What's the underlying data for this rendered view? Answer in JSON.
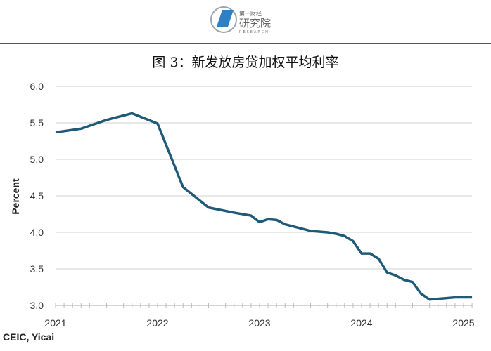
{
  "header": {
    "logo_text": "第一财经 研究院 RESEARCH"
  },
  "title": "图 3：新发放房贷加权平均利率",
  "source": "CEIC, Yicai",
  "chart_data": {
    "type": "line",
    "title": "图 3：新发放房贷加权平均利率",
    "xlabel": "",
    "ylabel": "Percent",
    "ylim": [
      3.0,
      6.0
    ],
    "xlim": [
      "2021-01",
      "2025-02"
    ],
    "yticks": [
      "3.0",
      "3.5",
      "4.0",
      "4.5",
      "5.0",
      "5.5",
      "6.0"
    ],
    "xticks": [
      "2021",
      "2022",
      "2023",
      "2024",
      "2025"
    ],
    "grid": "horizontal",
    "color": "#1f5a78",
    "x": [
      "2021-01",
      "2021-04",
      "2021-07",
      "2021-10",
      "2022-01",
      "2022-04",
      "2022-07",
      "2022-10",
      "2022-12",
      "2023-01",
      "2023-02",
      "2023-03",
      "2023-04",
      "2023-05",
      "2023-06",
      "2023-07",
      "2023-08",
      "2023-09",
      "2023-10",
      "2023-11",
      "2023-12",
      "2024-01",
      "2024-02",
      "2024-03",
      "2024-04",
      "2024-05",
      "2024-06",
      "2024-07",
      "2024-08",
      "2024-09",
      "2024-10",
      "2024-11",
      "2024-12",
      "2025-01",
      "2025-02"
    ],
    "values": [
      5.37,
      5.42,
      5.54,
      5.63,
      5.49,
      4.62,
      4.34,
      4.27,
      4.23,
      4.14,
      4.18,
      4.17,
      4.11,
      4.08,
      4.05,
      4.02,
      4.01,
      4.0,
      3.98,
      3.95,
      3.88,
      3.71,
      3.71,
      3.64,
      3.45,
      3.41,
      3.35,
      3.32,
      3.16,
      3.08,
      3.09,
      3.1,
      3.11,
      3.11,
      3.11
    ]
  }
}
